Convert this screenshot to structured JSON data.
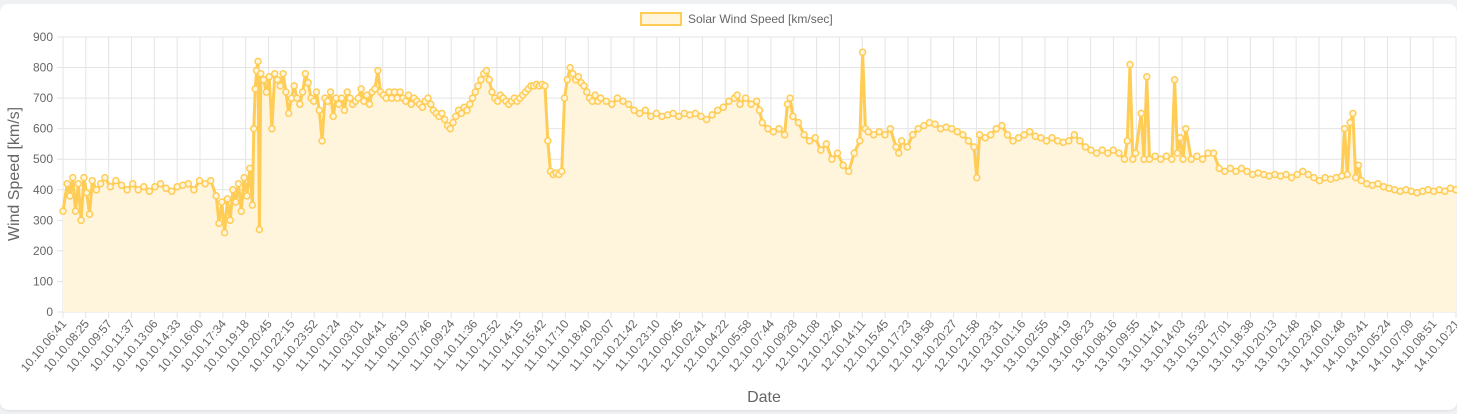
{
  "chart_data": {
    "type": "area",
    "legend": {
      "label": "Solar Wind Speed [km/sec]",
      "position": "top"
    },
    "xlabel": "Date",
    "ylabel": "Wind Speed [km/s]",
    "ylim": [
      0,
      900
    ],
    "yticks": [
      0,
      100,
      200,
      300,
      400,
      500,
      600,
      700,
      800,
      900
    ],
    "grid": true,
    "colors": {
      "line": "#ffcd56",
      "fill": "#fff4dc",
      "point_border": "#ffcd56",
      "point_fill": "#fff4dc"
    },
    "xtick_labels": [
      "10.10.06:41",
      "10.10.08:25",
      "10.10.09:57",
      "10.10.11:37",
      "10.10.13:06",
      "10.10.14:33",
      "10.10.16:00",
      "10.10.17:34",
      "10.10.19:18",
      "10.10.20:45",
      "10.10.22:15",
      "10.10.23:52",
      "11.10.01:24",
      "11.10.03:01",
      "11.10.04:41",
      "11.10.06:19",
      "11.10.07:46",
      "11.10.09:24",
      "11.10.11:36",
      "11.10.12:52",
      "11.10.14:15",
      "11.10.15:42",
      "11.10.17:10",
      "11.10.18:40",
      "11.10.20:07",
      "11.10.21:42",
      "11.10.23:10",
      "12.10.00:45",
      "12.10.02:41",
      "12.10.04:22",
      "12.10.05:58",
      "12.10.07:44",
      "12.10.09:28",
      "12.10.11:08",
      "12.10.12:40",
      "12.10.14:11",
      "12.10.15:45",
      "12.10.17:23",
      "12.10.18:58",
      "12.10.20:27",
      "12.10.21:58",
      "12.10.23:31",
      "13.10.01:16",
      "13.10.02:55",
      "13.10.04:19",
      "13.10.06:23",
      "13.10.08:16",
      "13.10.09:55",
      "13.10.11:41",
      "13.10.14:03",
      "13.10.15:32",
      "13.10.17:01",
      "13.10.18:38",
      "13.10.20:13",
      "13.10.21:48",
      "13.10.23:40",
      "14.10.01:48",
      "14.10.03:41",
      "14.10.05:24",
      "14.10.07:09",
      "14.10.08:51",
      "14.10.10:21"
    ],
    "anchors": [
      [
        0.0,
        330
      ],
      [
        0.003,
        420
      ],
      [
        0.005,
        380
      ],
      [
        0.007,
        440
      ],
      [
        0.009,
        330
      ],
      [
        0.011,
        420
      ],
      [
        0.013,
        300
      ],
      [
        0.015,
        440
      ],
      [
        0.017,
        390
      ],
      [
        0.019,
        320
      ],
      [
        0.021,
        430
      ],
      [
        0.024,
        400
      ],
      [
        0.027,
        420
      ],
      [
        0.03,
        440
      ],
      [
        0.034,
        410
      ],
      [
        0.038,
        430
      ],
      [
        0.042,
        415
      ],
      [
        0.046,
        400
      ],
      [
        0.05,
        420
      ],
      [
        0.054,
        400
      ],
      [
        0.058,
        410
      ],
      [
        0.062,
        395
      ],
      [
        0.066,
        410
      ],
      [
        0.07,
        420
      ],
      [
        0.074,
        405
      ],
      [
        0.078,
        395
      ],
      [
        0.082,
        410
      ],
      [
        0.086,
        415
      ],
      [
        0.09,
        420
      ],
      [
        0.094,
        400
      ],
      [
        0.098,
        430
      ],
      [
        0.102,
        420
      ],
      [
        0.106,
        430
      ],
      [
        0.11,
        380
      ],
      [
        0.112,
        290
      ],
      [
        0.114,
        360
      ],
      [
        0.116,
        260
      ],
      [
        0.118,
        370
      ],
      [
        0.12,
        300
      ],
      [
        0.122,
        400
      ],
      [
        0.124,
        360
      ],
      [
        0.126,
        420
      ],
      [
        0.128,
        330
      ],
      [
        0.13,
        440
      ],
      [
        0.132,
        380
      ],
      [
        0.134,
        470
      ],
      [
        0.136,
        350
      ],
      [
        0.137,
        600
      ],
      [
        0.138,
        730
      ],
      [
        0.139,
        790
      ],
      [
        0.14,
        820
      ],
      [
        0.141,
        270
      ],
      [
        0.142,
        780
      ],
      [
        0.144,
        760
      ],
      [
        0.146,
        720
      ],
      [
        0.148,
        770
      ],
      [
        0.15,
        600
      ],
      [
        0.152,
        780
      ],
      [
        0.154,
        760
      ],
      [
        0.156,
        740
      ],
      [
        0.158,
        780
      ],
      [
        0.16,
        720
      ],
      [
        0.162,
        650
      ],
      [
        0.164,
        700
      ],
      [
        0.166,
        740
      ],
      [
        0.168,
        700
      ],
      [
        0.17,
        680
      ],
      [
        0.172,
        720
      ],
      [
        0.174,
        780
      ],
      [
        0.176,
        750
      ],
      [
        0.178,
        700
      ],
      [
        0.18,
        690
      ],
      [
        0.182,
        720
      ],
      [
        0.184,
        660
      ],
      [
        0.186,
        560
      ],
      [
        0.188,
        700
      ],
      [
        0.19,
        690
      ],
      [
        0.192,
        720
      ],
      [
        0.194,
        640
      ],
      [
        0.196,
        700
      ],
      [
        0.198,
        680
      ],
      [
        0.2,
        700
      ],
      [
        0.202,
        660
      ],
      [
        0.204,
        720
      ],
      [
        0.206,
        700
      ],
      [
        0.208,
        680
      ],
      [
        0.21,
        690
      ],
      [
        0.212,
        700
      ],
      [
        0.214,
        730
      ],
      [
        0.216,
        690
      ],
      [
        0.218,
        710
      ],
      [
        0.22,
        680
      ],
      [
        0.222,
        720
      ],
      [
        0.224,
        730
      ],
      [
        0.226,
        790
      ],
      [
        0.228,
        720
      ],
      [
        0.23,
        710
      ],
      [
        0.232,
        700
      ],
      [
        0.234,
        720
      ],
      [
        0.236,
        700
      ],
      [
        0.238,
        720
      ],
      [
        0.24,
        700
      ],
      [
        0.242,
        720
      ],
      [
        0.244,
        700
      ],
      [
        0.246,
        690
      ],
      [
        0.248,
        710
      ],
      [
        0.25,
        680
      ],
      [
        0.252,
        700
      ],
      [
        0.254,
        690
      ],
      [
        0.256,
        680
      ],
      [
        0.258,
        670
      ],
      [
        0.26,
        690
      ],
      [
        0.262,
        700
      ],
      [
        0.264,
        680
      ],
      [
        0.266,
        660
      ],
      [
        0.268,
        650
      ],
      [
        0.27,
        640
      ],
      [
        0.272,
        650
      ],
      [
        0.274,
        630
      ],
      [
        0.276,
        610
      ],
      [
        0.278,
        600
      ],
      [
        0.28,
        620
      ],
      [
        0.282,
        640
      ],
      [
        0.284,
        660
      ],
      [
        0.286,
        650
      ],
      [
        0.288,
        670
      ],
      [
        0.29,
        660
      ],
      [
        0.292,
        680
      ],
      [
        0.294,
        700
      ],
      [
        0.296,
        720
      ],
      [
        0.298,
        740
      ],
      [
        0.3,
        760
      ],
      [
        0.302,
        780
      ],
      [
        0.304,
        790
      ],
      [
        0.306,
        760
      ],
      [
        0.308,
        720
      ],
      [
        0.31,
        700
      ],
      [
        0.312,
        690
      ],
      [
        0.314,
        710
      ],
      [
        0.316,
        700
      ],
      [
        0.318,
        690
      ],
      [
        0.32,
        680
      ],
      [
        0.322,
        690
      ],
      [
        0.324,
        700
      ],
      [
        0.326,
        690
      ],
      [
        0.328,
        700
      ],
      [
        0.33,
        710
      ],
      [
        0.332,
        720
      ],
      [
        0.334,
        730
      ],
      [
        0.336,
        740
      ],
      [
        0.338,
        740
      ],
      [
        0.34,
        745
      ],
      [
        0.342,
        740
      ],
      [
        0.344,
        745
      ],
      [
        0.346,
        740
      ],
      [
        0.348,
        560
      ],
      [
        0.35,
        460
      ],
      [
        0.352,
        450
      ],
      [
        0.354,
        455
      ],
      [
        0.356,
        450
      ],
      [
        0.358,
        460
      ],
      [
        0.36,
        700
      ],
      [
        0.362,
        760
      ],
      [
        0.364,
        800
      ],
      [
        0.366,
        780
      ],
      [
        0.368,
        760
      ],
      [
        0.37,
        770
      ],
      [
        0.372,
        750
      ],
      [
        0.374,
        740
      ],
      [
        0.376,
        720
      ],
      [
        0.378,
        700
      ],
      [
        0.38,
        690
      ],
      [
        0.382,
        710
      ],
      [
        0.384,
        690
      ],
      [
        0.386,
        700
      ],
      [
        0.39,
        690
      ],
      [
        0.394,
        680
      ],
      [
        0.398,
        700
      ],
      [
        0.402,
        690
      ],
      [
        0.406,
        680
      ],
      [
        0.41,
        660
      ],
      [
        0.414,
        650
      ],
      [
        0.418,
        660
      ],
      [
        0.422,
        640
      ],
      [
        0.426,
        650
      ],
      [
        0.43,
        640
      ],
      [
        0.434,
        645
      ],
      [
        0.438,
        650
      ],
      [
        0.442,
        640
      ],
      [
        0.446,
        650
      ],
      [
        0.45,
        645
      ],
      [
        0.454,
        650
      ],
      [
        0.458,
        640
      ],
      [
        0.462,
        630
      ],
      [
        0.466,
        645
      ],
      [
        0.47,
        660
      ],
      [
        0.474,
        670
      ],
      [
        0.478,
        690
      ],
      [
        0.482,
        700
      ],
      [
        0.484,
        710
      ],
      [
        0.486,
        680
      ],
      [
        0.49,
        700
      ],
      [
        0.494,
        680
      ],
      [
        0.498,
        690
      ],
      [
        0.5,
        660
      ],
      [
        0.502,
        620
      ],
      [
        0.506,
        600
      ],
      [
        0.51,
        590
      ],
      [
        0.514,
        600
      ],
      [
        0.518,
        580
      ],
      [
        0.52,
        680
      ],
      [
        0.522,
        700
      ],
      [
        0.524,
        640
      ],
      [
        0.528,
        620
      ],
      [
        0.532,
        580
      ],
      [
        0.536,
        560
      ],
      [
        0.54,
        570
      ],
      [
        0.544,
        530
      ],
      [
        0.548,
        550
      ],
      [
        0.552,
        500
      ],
      [
        0.556,
        520
      ],
      [
        0.56,
        480
      ],
      [
        0.564,
        460
      ],
      [
        0.568,
        520
      ],
      [
        0.572,
        560
      ],
      [
        0.574,
        850
      ],
      [
        0.576,
        600
      ],
      [
        0.578,
        590
      ],
      [
        0.582,
        580
      ],
      [
        0.586,
        590
      ],
      [
        0.59,
        580
      ],
      [
        0.594,
        600
      ],
      [
        0.598,
        540
      ],
      [
        0.6,
        520
      ],
      [
        0.602,
        560
      ],
      [
        0.606,
        540
      ],
      [
        0.61,
        580
      ],
      [
        0.614,
        600
      ],
      [
        0.618,
        610
      ],
      [
        0.622,
        620
      ],
      [
        0.626,
        615
      ],
      [
        0.63,
        600
      ],
      [
        0.634,
        605
      ],
      [
        0.638,
        600
      ],
      [
        0.642,
        590
      ],
      [
        0.646,
        580
      ],
      [
        0.65,
        560
      ],
      [
        0.654,
        540
      ],
      [
        0.656,
        440
      ],
      [
        0.658,
        580
      ],
      [
        0.662,
        570
      ],
      [
        0.666,
        580
      ],
      [
        0.67,
        600
      ],
      [
        0.674,
        610
      ],
      [
        0.678,
        580
      ],
      [
        0.682,
        560
      ],
      [
        0.686,
        570
      ],
      [
        0.69,
        580
      ],
      [
        0.694,
        590
      ],
      [
        0.698,
        575
      ],
      [
        0.702,
        570
      ],
      [
        0.706,
        560
      ],
      [
        0.71,
        570
      ],
      [
        0.714,
        560
      ],
      [
        0.718,
        555
      ],
      [
        0.722,
        560
      ],
      [
        0.726,
        580
      ],
      [
        0.73,
        560
      ],
      [
        0.734,
        540
      ],
      [
        0.738,
        530
      ],
      [
        0.742,
        520
      ],
      [
        0.746,
        530
      ],
      [
        0.75,
        520
      ],
      [
        0.754,
        530
      ],
      [
        0.758,
        520
      ],
      [
        0.762,
        500
      ],
      [
        0.764,
        560
      ],
      [
        0.766,
        810
      ],
      [
        0.768,
        500
      ],
      [
        0.77,
        520
      ],
      [
        0.774,
        650
      ],
      [
        0.776,
        500
      ],
      [
        0.778,
        770
      ],
      [
        0.78,
        500
      ],
      [
        0.784,
        510
      ],
      [
        0.788,
        500
      ],
      [
        0.792,
        510
      ],
      [
        0.796,
        500
      ],
      [
        0.798,
        760
      ],
      [
        0.8,
        520
      ],
      [
        0.802,
        570
      ],
      [
        0.804,
        500
      ],
      [
        0.806,
        600
      ],
      [
        0.81,
        500
      ],
      [
        0.814,
        510
      ],
      [
        0.818,
        500
      ],
      [
        0.822,
        520
      ],
      [
        0.826,
        520
      ],
      [
        0.83,
        470
      ],
      [
        0.834,
        460
      ],
      [
        0.838,
        470
      ],
      [
        0.842,
        460
      ],
      [
        0.846,
        470
      ],
      [
        0.85,
        460
      ],
      [
        0.854,
        450
      ],
      [
        0.858,
        455
      ],
      [
        0.862,
        450
      ],
      [
        0.866,
        445
      ],
      [
        0.87,
        450
      ],
      [
        0.874,
        445
      ],
      [
        0.878,
        450
      ],
      [
        0.882,
        440
      ],
      [
        0.886,
        450
      ],
      [
        0.89,
        460
      ],
      [
        0.894,
        450
      ],
      [
        0.898,
        440
      ],
      [
        0.902,
        430
      ],
      [
        0.906,
        440
      ],
      [
        0.91,
        435
      ],
      [
        0.914,
        440
      ],
      [
        0.918,
        445
      ],
      [
        0.92,
        600
      ],
      [
        0.922,
        450
      ],
      [
        0.924,
        620
      ],
      [
        0.926,
        650
      ],
      [
        0.928,
        440
      ],
      [
        0.93,
        480
      ],
      [
        0.932,
        430
      ],
      [
        0.936,
        420
      ],
      [
        0.94,
        415
      ],
      [
        0.944,
        420
      ],
      [
        0.948,
        410
      ],
      [
        0.952,
        405
      ],
      [
        0.956,
        400
      ],
      [
        0.96,
        395
      ],
      [
        0.964,
        400
      ],
      [
        0.968,
        395
      ],
      [
        0.972,
        390
      ],
      [
        0.976,
        395
      ],
      [
        0.98,
        400
      ],
      [
        0.984,
        395
      ],
      [
        0.988,
        400
      ],
      [
        0.992,
        395
      ],
      [
        0.996,
        405
      ],
      [
        1.0,
        400
      ]
    ]
  }
}
